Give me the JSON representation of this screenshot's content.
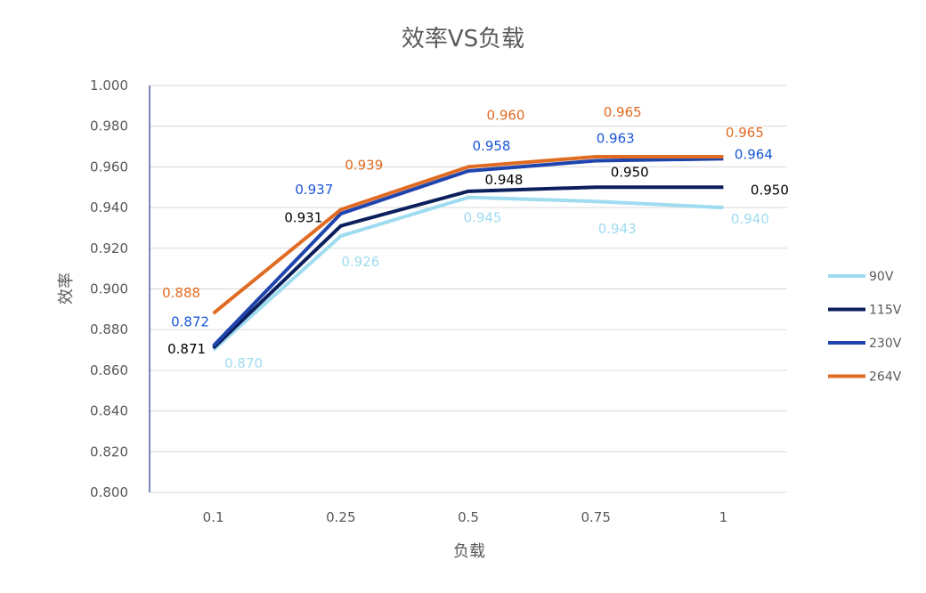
{
  "chart_data": {
    "type": "line",
    "title": "效率VS负载",
    "xlabel": "负载",
    "ylabel": "效率",
    "categories": [
      "0.1",
      "0.25",
      "0.5",
      "0.75",
      "1"
    ],
    "ylim": [
      0.8,
      1.0
    ],
    "yticks": [
      "0.800",
      "0.820",
      "0.840",
      "0.860",
      "0.880",
      "0.900",
      "0.920",
      "0.940",
      "0.960",
      "0.980",
      "1.000"
    ],
    "grid": true,
    "legend_position": "right",
    "series": [
      {
        "name": "90V",
        "color": "#9fdcf0",
        "values": [
          0.87,
          0.926,
          0.945,
          0.943,
          0.94
        ],
        "labels": [
          "0.870",
          "0.926",
          "0.945",
          "0.943",
          "0.940"
        ]
      },
      {
        "name": "115V",
        "color": "#0b1f5c",
        "label_color": "#000000",
        "values": [
          0.871,
          0.931,
          0.948,
          0.95,
          0.95
        ],
        "labels": [
          "0.871",
          "0.931",
          "0.948",
          "0.950",
          "0.950"
        ]
      },
      {
        "name": "230V",
        "color": "#1f44ae",
        "label_color": "#1a56d6",
        "values": [
          0.872,
          0.937,
          0.958,
          0.963,
          0.964
        ],
        "labels": [
          "0.872",
          "0.937",
          "0.958",
          "0.963",
          "0.964"
        ]
      },
      {
        "name": "264V",
        "color": "#e06b22",
        "values": [
          0.888,
          0.939,
          0.96,
          0.965,
          0.965
        ],
        "labels": [
          "0.888",
          "0.939",
          "0.960",
          "0.965",
          "0.965"
        ]
      }
    ]
  }
}
